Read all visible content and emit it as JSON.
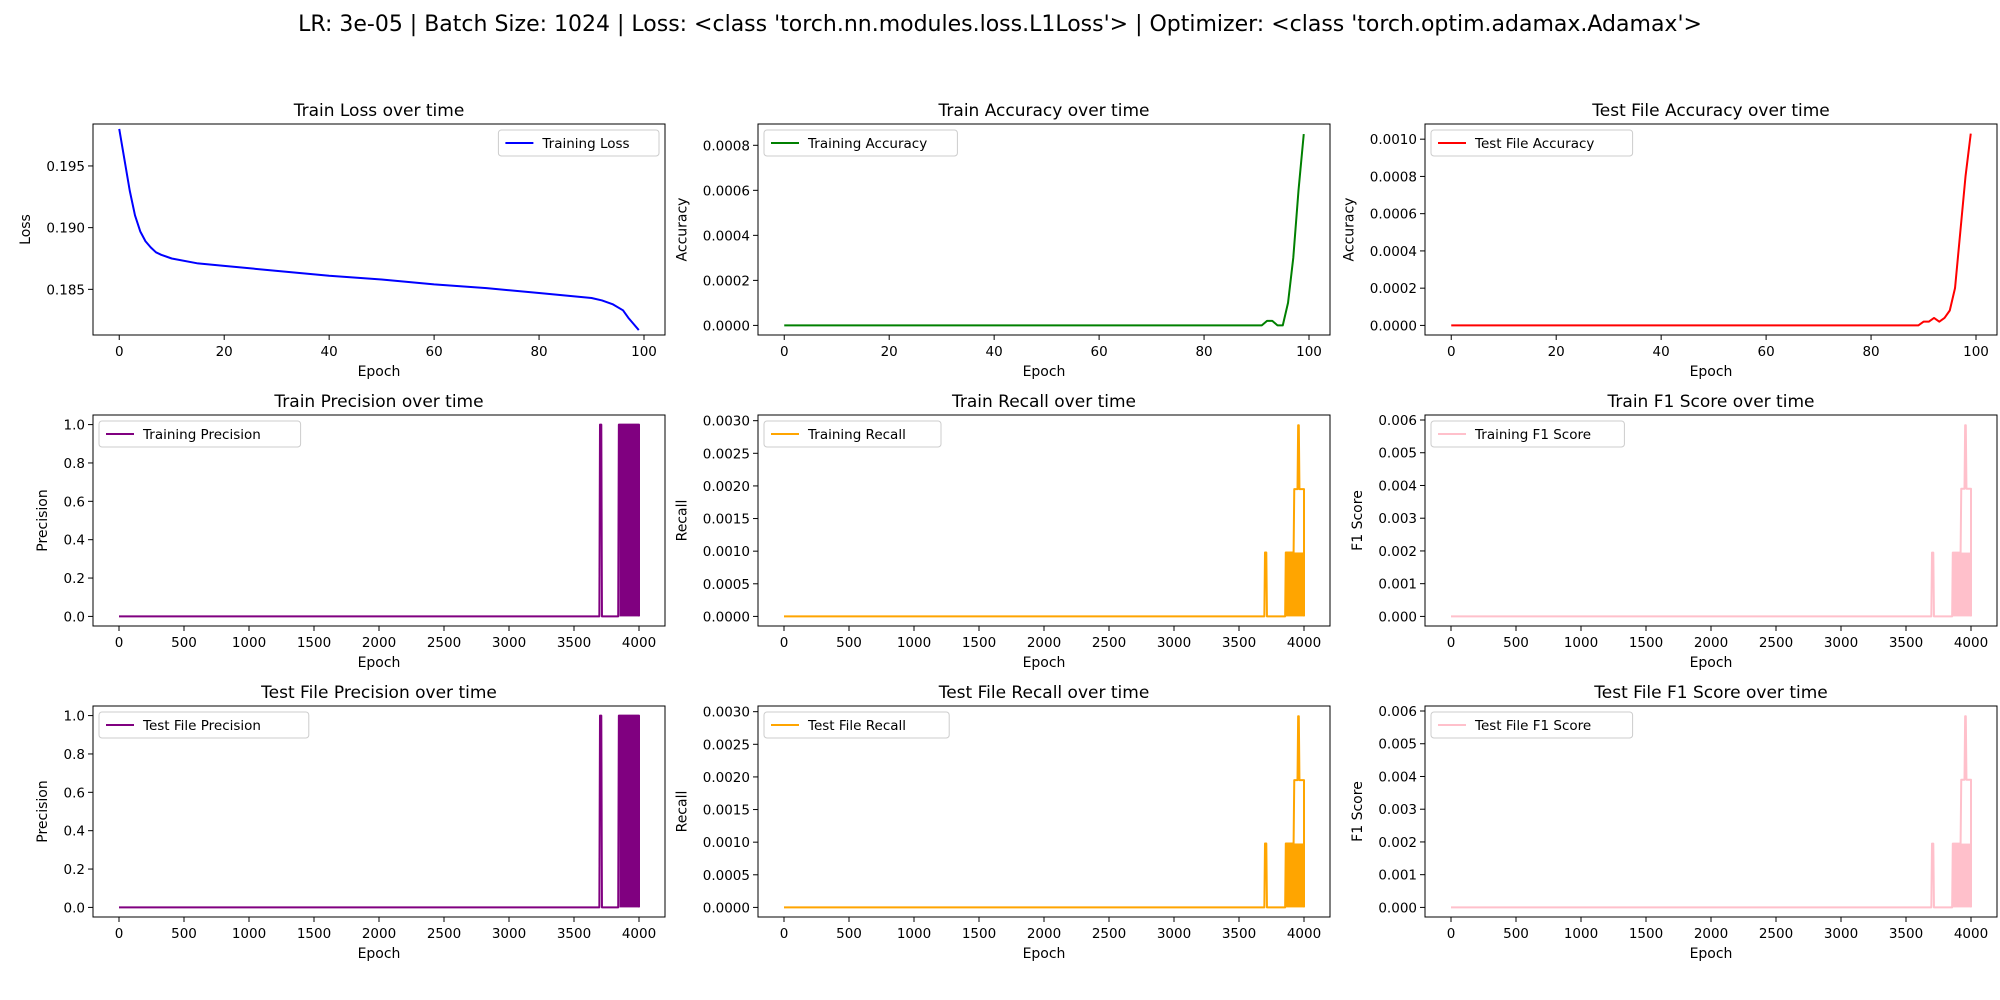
{
  "suptitle": "LR: 3e-05 | Batch Size: 1024 | Loss: <class 'torch.nn.modules.loss.L1Loss'> | Optimizer: <class 'torch.optim.adamax.Adamax'>",
  "chart_data": [
    {
      "type": "line",
      "title": "Train Loss over time",
      "xlabel": "Epoch",
      "ylabel": "Loss",
      "xlim": [
        -5,
        104
      ],
      "ylim": [
        0.1813,
        0.1984
      ],
      "xticks": [
        0,
        20,
        40,
        60,
        80,
        100
      ],
      "yticks": [
        0.185,
        0.19,
        0.195
      ],
      "ytick_labels": [
        "0.185",
        "0.190",
        "0.195"
      ],
      "legend": "upper right",
      "series": [
        {
          "name": "Training Loss",
          "color": "#0000ff",
          "points": [
            [
              0,
              0.198
            ],
            [
              1,
              0.1955
            ],
            [
              2,
              0.193
            ],
            [
              3,
              0.191
            ],
            [
              4,
              0.1897
            ],
            [
              5,
              0.1889
            ],
            [
              6,
              0.1884
            ],
            [
              7,
              0.188
            ],
            [
              8,
              0.1878
            ],
            [
              10,
              0.1875
            ],
            [
              15,
              0.1871
            ],
            [
              20,
              0.1869
            ],
            [
              30,
              0.1865
            ],
            [
              40,
              0.1861
            ],
            [
              50,
              0.1858
            ],
            [
              60,
              0.1854
            ],
            [
              70,
              0.1851
            ],
            [
              80,
              0.1847
            ],
            [
              85,
              0.1845
            ],
            [
              90,
              0.1843
            ],
            [
              92,
              0.1841
            ],
            [
              94,
              0.1838
            ],
            [
              96,
              0.1833
            ],
            [
              97,
              0.1827
            ],
            [
              98,
              0.1822
            ],
            [
              99,
              0.1817
            ]
          ]
        }
      ]
    },
    {
      "type": "line",
      "title": "Train Accuracy over time",
      "xlabel": "Epoch",
      "ylabel": "Accuracy",
      "xlim": [
        -5,
        104
      ],
      "ylim": [
        -4.26e-05,
        0.0008946
      ],
      "xticks": [
        0,
        20,
        40,
        60,
        80,
        100
      ],
      "yticks": [
        0,
        0.0002,
        0.0004,
        0.0006,
        0.0008
      ],
      "ytick_labels": [
        "0.0000",
        "0.0002",
        "0.0004",
        "0.0006",
        "0.0008"
      ],
      "legend": "upper left",
      "series": [
        {
          "name": "Training Accuracy",
          "color": "#008000",
          "points": [
            [
              0,
              0
            ],
            [
              91,
              0
            ],
            [
              92,
              2e-05
            ],
            [
              93,
              2e-05
            ],
            [
              94,
              0
            ],
            [
              95,
              0
            ],
            [
              96,
              0.0001
            ],
            [
              97,
              0.0003
            ],
            [
              98,
              0.0006
            ],
            [
              99,
              0.00085
            ]
          ]
        }
      ]
    },
    {
      "type": "line",
      "title": "Test File Accuracy over time",
      "xlabel": "Epoch",
      "ylabel": "Accuracy",
      "xlim": [
        -5,
        104
      ],
      "ylim": [
        -5.15e-05,
        0.0010815
      ],
      "xticks": [
        0,
        20,
        40,
        60,
        80,
        100
      ],
      "yticks": [
        0,
        0.0002,
        0.0004,
        0.0006,
        0.0008,
        0.001
      ],
      "ytick_labels": [
        "0.0000",
        "0.0002",
        "0.0004",
        "0.0006",
        "0.0008",
        "0.0010"
      ],
      "legend": "upper left",
      "series": [
        {
          "name": "Test File Accuracy",
          "color": "#ff0000",
          "points": [
            [
              0,
              0
            ],
            [
              89,
              0
            ],
            [
              90,
              2e-05
            ],
            [
              91,
              2e-05
            ],
            [
              92,
              4e-05
            ],
            [
              93,
              2e-05
            ],
            [
              94,
              4e-05
            ],
            [
              95,
              8e-05
            ],
            [
              96,
              0.0002
            ],
            [
              97,
              0.0005
            ],
            [
              98,
              0.0008
            ],
            [
              99,
              0.00103
            ]
          ]
        }
      ]
    },
    {
      "type": "line",
      "title": "Train Precision over time",
      "xlabel": "Epoch",
      "ylabel": "Precision",
      "xlim": [
        -200,
        4200
      ],
      "ylim": [
        -0.05,
        1.05
      ],
      "xticks": [
        0,
        500,
        1000,
        1500,
        2000,
        2500,
        3000,
        3500,
        4000
      ],
      "yticks": [
        0,
        0.2,
        0.4,
        0.6,
        0.8,
        1.0
      ],
      "ytick_labels": [
        "0.0",
        "0.2",
        "0.4",
        "0.6",
        "0.8",
        "1.0"
      ],
      "legend": "upper left",
      "series": [
        {
          "name": "Training Precision",
          "color": "#800080",
          "points": [
            [
              0,
              0
            ],
            [
              3695,
              0
            ],
            [
              3700,
              1
            ],
            [
              3710,
              1
            ],
            [
              3715,
              0
            ],
            [
              3840,
              0
            ],
            [
              3845,
              1
            ],
            [
              4000,
              1
            ],
            [
              4000,
              0
            ]
          ],
          "filled_band": [
            3850,
            4000,
            0,
            1
          ]
        }
      ]
    },
    {
      "type": "line",
      "title": "Train Recall over time",
      "xlabel": "Epoch",
      "ylabel": "Recall",
      "xlim": [
        -200,
        4200
      ],
      "ylim": [
        -0.000147,
        0.003087
      ],
      "xticks": [
        0,
        500,
        1000,
        1500,
        2000,
        2500,
        3000,
        3500,
        4000
      ],
      "yticks": [
        0,
        0.0005,
        0.001,
        0.0015,
        0.002,
        0.0025,
        0.003
      ],
      "ytick_labels": [
        "0.0000",
        "0.0005",
        "0.0010",
        "0.0015",
        "0.0020",
        "0.0025",
        "0.0030"
      ],
      "legend": "upper left",
      "series": [
        {
          "name": "Training Recall",
          "color": "#ffa500",
          "points": [
            [
              0,
              0
            ],
            [
              3695,
              0
            ],
            [
              3700,
              0.00098
            ],
            [
              3710,
              0.00098
            ],
            [
              3715,
              0
            ],
            [
              3855,
              0
            ],
            [
              3860,
              0.00098
            ],
            [
              3920,
              0.00098
            ],
            [
              3925,
              0.00195
            ],
            [
              3950,
              0.00195
            ],
            [
              3955,
              0.00293
            ],
            [
              3960,
              0.00293
            ],
            [
              3965,
              0.00195
            ],
            [
              4000,
              0.00195
            ],
            [
              4000,
              0
            ]
          ],
          "filled_band": [
            3860,
            4000,
            0,
            0.00098
          ]
        }
      ]
    },
    {
      "type": "line",
      "title": "Train F1 Score over time",
      "xlabel": "Epoch",
      "ylabel": "F1 Score",
      "xlim": [
        -200,
        4200
      ],
      "ylim": [
        -0.000293,
        0.006153
      ],
      "xticks": [
        0,
        500,
        1000,
        1500,
        2000,
        2500,
        3000,
        3500,
        4000
      ],
      "yticks": [
        0,
        0.001,
        0.002,
        0.003,
        0.004,
        0.005,
        0.006
      ],
      "ytick_labels": [
        "0.000",
        "0.001",
        "0.002",
        "0.003",
        "0.004",
        "0.005",
        "0.006"
      ],
      "legend": "upper left",
      "series": [
        {
          "name": "Training F1 Score",
          "color": "#ffc0cb",
          "points": [
            [
              0,
              0
            ],
            [
              3695,
              0
            ],
            [
              3700,
              0.00195
            ],
            [
              3710,
              0.00195
            ],
            [
              3715,
              0
            ],
            [
              3855,
              0
            ],
            [
              3860,
              0.00195
            ],
            [
              3920,
              0.00195
            ],
            [
              3925,
              0.0039
            ],
            [
              3950,
              0.0039
            ],
            [
              3955,
              0.00584
            ],
            [
              3960,
              0.00584
            ],
            [
              3965,
              0.0039
            ],
            [
              4000,
              0.0039
            ],
            [
              4000,
              0
            ]
          ],
          "filled_band": [
            3860,
            4000,
            0,
            0.00195
          ]
        }
      ]
    },
    {
      "type": "line",
      "title": "Test File Precision over time",
      "xlabel": "Epoch",
      "ylabel": "Precision",
      "xlim": [
        -200,
        4200
      ],
      "ylim": [
        -0.05,
        1.05
      ],
      "xticks": [
        0,
        500,
        1000,
        1500,
        2000,
        2500,
        3000,
        3500,
        4000
      ],
      "yticks": [
        0,
        0.2,
        0.4,
        0.6,
        0.8,
        1.0
      ],
      "ytick_labels": [
        "0.0",
        "0.2",
        "0.4",
        "0.6",
        "0.8",
        "1.0"
      ],
      "legend": "upper left",
      "series": [
        {
          "name": "Test File Precision",
          "color": "#800080",
          "points": [
            [
              0,
              0
            ],
            [
              3695,
              0
            ],
            [
              3700,
              1
            ],
            [
              3710,
              1
            ],
            [
              3715,
              0
            ],
            [
              3840,
              0
            ],
            [
              3845,
              1
            ],
            [
              4000,
              1
            ],
            [
              4000,
              0
            ]
          ],
          "filled_band": [
            3850,
            4000,
            0,
            1
          ]
        }
      ]
    },
    {
      "type": "line",
      "title": "Test File Recall over time",
      "xlabel": "Epoch",
      "ylabel": "Recall",
      "xlim": [
        -200,
        4200
      ],
      "ylim": [
        -0.000147,
        0.003087
      ],
      "xticks": [
        0,
        500,
        1000,
        1500,
        2000,
        2500,
        3000,
        3500,
        4000
      ],
      "yticks": [
        0,
        0.0005,
        0.001,
        0.0015,
        0.002,
        0.0025,
        0.003
      ],
      "ytick_labels": [
        "0.0000",
        "0.0005",
        "0.0010",
        "0.0015",
        "0.0020",
        "0.0025",
        "0.0030"
      ],
      "legend": "upper left",
      "series": [
        {
          "name": "Test File Recall",
          "color": "#ffa500",
          "points": [
            [
              0,
              0
            ],
            [
              3695,
              0
            ],
            [
              3700,
              0.00098
            ],
            [
              3710,
              0.00098
            ],
            [
              3715,
              0
            ],
            [
              3855,
              0
            ],
            [
              3860,
              0.00098
            ],
            [
              3920,
              0.00098
            ],
            [
              3925,
              0.00195
            ],
            [
              3950,
              0.00195
            ],
            [
              3955,
              0.00293
            ],
            [
              3960,
              0.00293
            ],
            [
              3965,
              0.00195
            ],
            [
              4000,
              0.00195
            ],
            [
              4000,
              0
            ]
          ],
          "filled_band": [
            3860,
            4000,
            0,
            0.00098
          ]
        }
      ]
    },
    {
      "type": "line",
      "title": "Test File F1 Score over time",
      "xlabel": "Epoch",
      "ylabel": "F1 Score",
      "xlim": [
        -200,
        4200
      ],
      "ylim": [
        -0.000293,
        0.006153
      ],
      "xticks": [
        0,
        500,
        1000,
        1500,
        2000,
        2500,
        3000,
        3500,
        4000
      ],
      "yticks": [
        0,
        0.001,
        0.002,
        0.003,
        0.004,
        0.005,
        0.006
      ],
      "ytick_labels": [
        "0.000",
        "0.001",
        "0.002",
        "0.003",
        "0.004",
        "0.005",
        "0.006"
      ],
      "legend": "upper left",
      "series": [
        {
          "name": "Test File F1 Score",
          "color": "#ffc0cb",
          "points": [
            [
              0,
              0
            ],
            [
              3695,
              0
            ],
            [
              3700,
              0.00195
            ],
            [
              3710,
              0.00195
            ],
            [
              3715,
              0
            ],
            [
              3855,
              0
            ],
            [
              3860,
              0.00195
            ],
            [
              3920,
              0.00195
            ],
            [
              3925,
              0.0039
            ],
            [
              3950,
              0.0039
            ],
            [
              3955,
              0.00584
            ],
            [
              3960,
              0.00584
            ],
            [
              3965,
              0.0039
            ],
            [
              4000,
              0.0039
            ],
            [
              4000,
              0
            ]
          ],
          "filled_band": [
            3860,
            4000,
            0,
            0.00195
          ]
        }
      ]
    }
  ]
}
